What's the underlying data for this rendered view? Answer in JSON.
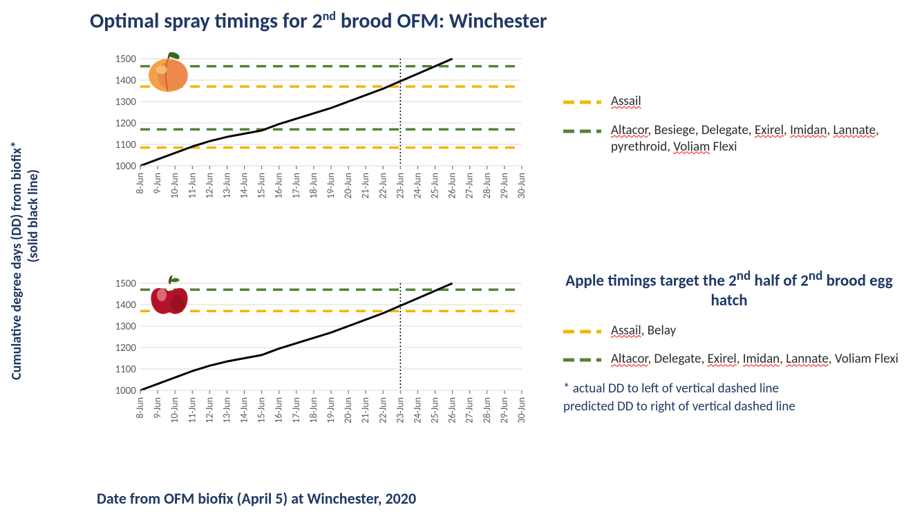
{
  "title_html": "Optimal spray timings for 2<sup>nd</sup> brood OFM: Winchester",
  "y_axis_label": "Cumulative degree days (DD) from biofix*",
  "y_axis_sublabel": "(solid black line)",
  "x_axis_label": "Date from OFM biofix (April 5) at Winchester, 2020",
  "colors": {
    "title": "#1f3864",
    "grid": "#d9d9d9",
    "axis": "#595959",
    "line": "#000000",
    "assail": "#f2b600",
    "altacor": "#548235",
    "vline": "#000000"
  },
  "x_categories": [
    "8-Jun",
    "9-Jun",
    "10-Jun",
    "11-Jun",
    "12-Jun",
    "13-Jun",
    "14-Jun",
    "15-Jun",
    "16-Jun",
    "17-Jun",
    "18-Jun",
    "19-Jun",
    "20-Jun",
    "21-Jun",
    "22-Jun",
    "23-Jun",
    "24-Jun",
    "25-Jun",
    "26-Jun",
    "27-Jun",
    "28-Jun",
    "29-Jun",
    "30-Jun"
  ],
  "y_ticks": [
    1000,
    1100,
    1200,
    1300,
    1400,
    1500
  ],
  "ylim": [
    1000,
    1500
  ],
  "line_width": 3,
  "dash_width": 3.5,
  "vline_index": 15,
  "chart1": {
    "fruit": "peach",
    "series_y": [
      1000,
      1030,
      1060,
      1090,
      1115,
      1135,
      1150,
      1165,
      1195,
      1220,
      1245,
      1270,
      1300,
      1330,
      1360,
      1395,
      1430,
      1465,
      1500
    ],
    "hlines": [
      {
        "y": 1085,
        "color": "#f2b600"
      },
      {
        "y": 1170,
        "color": "#548235"
      },
      {
        "y": 1370,
        "color": "#f2b600"
      },
      {
        "y": 1465,
        "color": "#548235"
      }
    ]
  },
  "chart2": {
    "fruit": "apple",
    "series_y": [
      1000,
      1030,
      1060,
      1090,
      1115,
      1135,
      1150,
      1165,
      1195,
      1220,
      1245,
      1270,
      1300,
      1330,
      1360,
      1395,
      1430,
      1465,
      1500
    ],
    "hlines": [
      {
        "y": 1370,
        "color": "#f2b600"
      },
      {
        "y": 1470,
        "color": "#548235"
      }
    ]
  },
  "legend1": [
    {
      "color": "#f2b600",
      "html": "<span class='underline-wavy'>Assail</span>"
    },
    {
      "color": "#548235",
      "html": "<span class='underline-wavy'>Altacor</span>, Besiege, Delegate, <span class='underline-wavy'>Exirel</span>, <span class='underline-wavy'>Imidan</span>, <span class='underline-wavy'>Lannate</span>, pyrethroid, <span class='underline-wavy'>Voliam</span> Flexi"
    }
  ],
  "section2_heading_html": "Apple timings target the 2<sup>nd</sup> half of 2<sup>nd</sup> brood egg hatch",
  "legend2": [
    {
      "color": "#f2b600",
      "html": "<span class='underline-wavy'>Assail</span>, Belay"
    },
    {
      "color": "#548235",
      "html": "<span class='underline-wavy'>Altacor</span>, Delegate, <span class='underline-wavy'>Exirel</span>, <span class='underline-wavy'>Imidan</span>, <span class='underline-wavy'>Lannate</span>, Voliam Flexi"
    }
  ],
  "footnote_line1": "* actual DD to left of vertical dashed line",
  "footnote_line2": "predicted DD to right of vertical dashed line"
}
